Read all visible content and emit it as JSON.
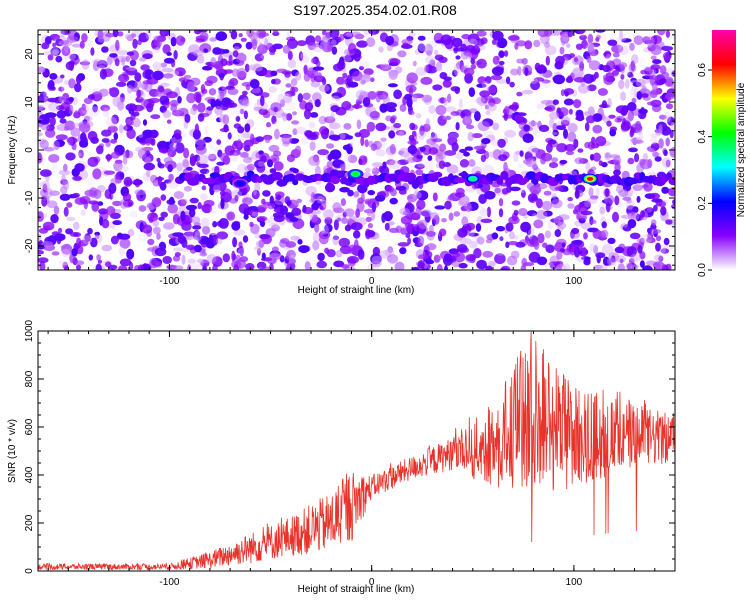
{
  "title": "S197.2025.354.02.01.R08",
  "chart_data": [
    {
      "type": "heatmap",
      "title": "S197.2025.354.02.01.R08",
      "xlabel": "Height of straight line (km)",
      "ylabel": "Frequency (Hz)",
      "xlim": [
        -165,
        150
      ],
      "ylim": [
        -25,
        25
      ],
      "x_ticks": [
        -100,
        0,
        100
      ],
      "y_ticks": [
        -20,
        -10,
        0,
        10,
        20
      ],
      "colorbar": {
        "label": "Normalized spectral amplitude",
        "range": [
          0.0,
          0.72
        ],
        "ticks": [
          0.0,
          0.2,
          0.4,
          0.6
        ],
        "colors": [
          "#ffffff",
          "#8800ff",
          "#0000ff",
          "#00ffff",
          "#00ff00",
          "#ffff00",
          "#ff0000",
          "#ff00aa"
        ]
      },
      "features": {
        "signal_band_frequency_hz": -6,
        "background_amplitude": [
          0.0,
          0.15
        ],
        "hotspots": [
          {
            "x": -65,
            "y": -7,
            "amplitude": 0.2
          },
          {
            "x": -8,
            "y": -5,
            "amplitude": 0.4
          },
          {
            "x": 50,
            "y": -6,
            "amplitude": 0.35
          },
          {
            "x": 108,
            "y": -6,
            "amplitude": 0.6
          }
        ]
      }
    },
    {
      "type": "line",
      "xlabel": "Height of straight line (km)",
      "ylabel": "SNR (10 * v/v)",
      "xlim": [
        -165,
        150
      ],
      "ylim": [
        0,
        1000
      ],
      "x_ticks": [
        -100,
        0,
        100
      ],
      "y_ticks": [
        0,
        200,
        400,
        600,
        800,
        1000
      ],
      "color": "#e8332c",
      "envelope": {
        "x": [
          -165,
          -100,
          -80,
          -60,
          -40,
          -20,
          -10,
          0,
          20,
          40,
          60,
          80,
          100,
          120,
          150
        ],
        "low": [
          5,
          5,
          10,
          30,
          60,
          80,
          120,
          300,
          380,
          420,
          350,
          300,
          350,
          400,
          450
        ],
        "high": [
          30,
          30,
          80,
          160,
          230,
          330,
          420,
          400,
          480,
          560,
          700,
          1000,
          780,
          720,
          650
        ]
      }
    }
  ]
}
